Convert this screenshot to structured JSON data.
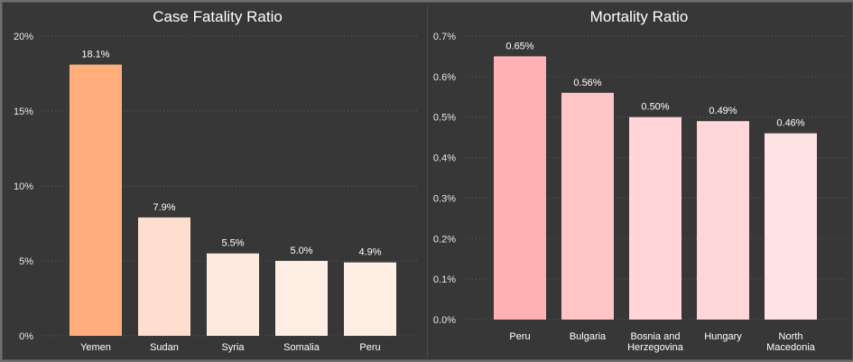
{
  "chart_data": [
    {
      "type": "bar",
      "title": "Case Fatality Ratio",
      "categories": [
        "Yemen",
        "Sudan",
        "Syria",
        "Somalia",
        "Peru"
      ],
      "values": [
        18.1,
        7.9,
        5.5,
        5.0,
        4.9
      ],
      "data_labels": [
        "18.1%",
        "7.9%",
        "5.5%",
        "5.0%",
        "4.9%"
      ],
      "colors": [
        "#ffae7c",
        "#fedfcf",
        "#feebdf",
        "#feeee3",
        "#feeee4"
      ],
      "ylim": [
        0,
        20
      ],
      "yticks": [
        0,
        5,
        10,
        15,
        20
      ],
      "ytick_labels": [
        "0%",
        "5%",
        "10%",
        "15%",
        "20%"
      ],
      "grid": true,
      "xlabel": "",
      "ylabel": ""
    },
    {
      "type": "bar",
      "title": "Mortality Ratio",
      "categories": [
        [
          "Peru"
        ],
        [
          "Bulgaria"
        ],
        [
          "Bosnia and",
          "Herzegovina"
        ],
        [
          "Hungary"
        ],
        [
          "North",
          "Macedonia"
        ]
      ],
      "values": [
        0.65,
        0.56,
        0.5,
        0.49,
        0.46
      ],
      "data_labels": [
        "0.65%",
        "0.56%",
        "0.50%",
        "0.49%",
        "0.46%"
      ],
      "colors": [
        "#ffb1b3",
        "#ffc5c7",
        "#ffd5d7",
        "#ffd7d9",
        "#ffe2e3"
      ],
      "ylim": [
        0,
        0.7
      ],
      "yticks": [
        0,
        0.1,
        0.2,
        0.3,
        0.4,
        0.5,
        0.6,
        0.7
      ],
      "ytick_labels": [
        "0.0%",
        "0.1%",
        "0.2%",
        "0.3%",
        "0.4%",
        "0.5%",
        "0.6%",
        "0.7%"
      ],
      "grid": true,
      "xlabel": "",
      "ylabel": ""
    }
  ]
}
